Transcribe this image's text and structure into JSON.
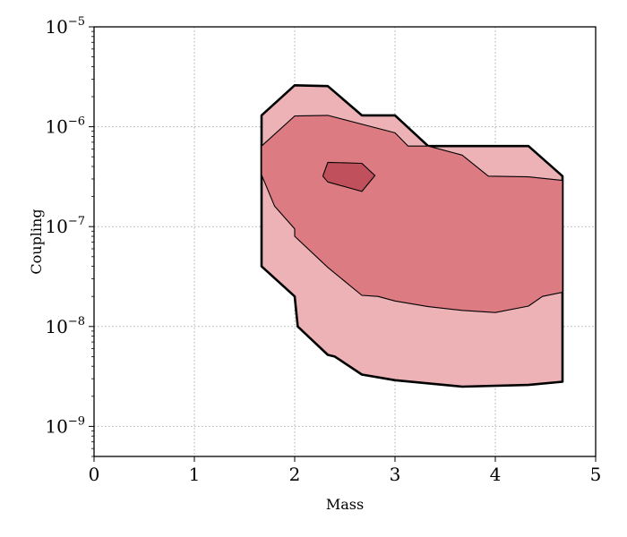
{
  "chart_data": {
    "type": "area",
    "title": "",
    "xlabel": "Mass",
    "ylabel": "Coupling",
    "xlim": [
      0,
      5
    ],
    "ylim": [
      5e-10,
      1e-05
    ],
    "yscale": "log",
    "grid": true,
    "xticks": [
      {
        "value": 0,
        "label": "0"
      },
      {
        "value": 1,
        "label": "1"
      },
      {
        "value": 2,
        "label": "2"
      },
      {
        "value": 3,
        "label": "3"
      },
      {
        "value": 4,
        "label": "4"
      },
      {
        "value": 5,
        "label": "5"
      }
    ],
    "yticks": [
      {
        "value": 1e-09,
        "base": "10",
        "exp": "−9"
      },
      {
        "value": 1e-08,
        "base": "10",
        "exp": "−8"
      },
      {
        "value": 1e-07,
        "base": "10",
        "exp": "−7"
      },
      {
        "value": 1e-06,
        "base": "10",
        "exp": "−6"
      },
      {
        "value": 1e-05,
        "base": "10",
        "exp": "−5"
      }
    ],
    "colors": {
      "outer": "#ecb2b6",
      "middle": "#dc7b82",
      "inner": "#c0505b",
      "outline": "#000000",
      "grid": "#b0b0b0"
    },
    "regions": [
      {
        "level": "outer",
        "thick_outline": true,
        "points": [
          [
            1.67,
            1.3e-06
          ],
          [
            2.0,
            2.6e-06
          ],
          [
            2.33,
            2.55e-06
          ],
          [
            2.67,
            1.3e-06
          ],
          [
            3.0,
            1.3e-06
          ],
          [
            3.33,
            6.4e-07
          ],
          [
            4.33,
            6.4e-07
          ],
          [
            4.67,
            3.2e-07
          ],
          [
            4.67,
            2.8e-09
          ],
          [
            4.33,
            2.6e-09
          ],
          [
            3.67,
            2.5e-09
          ],
          [
            3.0,
            2.9e-09
          ],
          [
            2.67,
            3.3e-09
          ],
          [
            2.4,
            5e-09
          ],
          [
            2.33,
            5.2e-09
          ],
          [
            2.03,
            1e-08
          ],
          [
            2.0,
            2e-08
          ],
          [
            1.67,
            4e-08
          ],
          [
            1.67,
            8e-08
          ]
        ]
      },
      {
        "level": "middle",
        "thick_outline": false,
        "points": [
          [
            1.67,
            6.4e-07
          ],
          [
            2.0,
            1.28e-06
          ],
          [
            2.33,
            1.3e-06
          ],
          [
            3.0,
            8.7e-07
          ],
          [
            3.13,
            6.4e-07
          ],
          [
            3.33,
            6.4e-07
          ],
          [
            3.67,
            5.2e-07
          ],
          [
            3.93,
            3.2e-07
          ],
          [
            4.33,
            3.15e-07
          ],
          [
            4.67,
            2.9e-07
          ],
          [
            4.67,
            2.2e-08
          ],
          [
            4.47,
            2e-08
          ],
          [
            4.33,
            1.6e-08
          ],
          [
            4.0,
            1.38e-08
          ],
          [
            3.67,
            1.45e-08
          ],
          [
            3.33,
            1.58e-08
          ],
          [
            3.0,
            1.8e-08
          ],
          [
            2.83,
            2e-08
          ],
          [
            2.67,
            2.05e-08
          ],
          [
            2.33,
            3.9e-08
          ],
          [
            2.0,
            8e-08
          ],
          [
            2.0,
            9.5e-08
          ],
          [
            1.8,
            1.6e-07
          ],
          [
            1.67,
            3.3e-07
          ]
        ]
      },
      {
        "level": "inner",
        "thick_outline": false,
        "points": [
          [
            2.33,
            4.4e-07
          ],
          [
            2.67,
            4.3e-07
          ],
          [
            2.8,
            3.25e-07
          ],
          [
            2.67,
            2.25e-07
          ],
          [
            2.33,
            2.8e-07
          ],
          [
            2.28,
            3.2e-07
          ]
        ]
      }
    ]
  }
}
